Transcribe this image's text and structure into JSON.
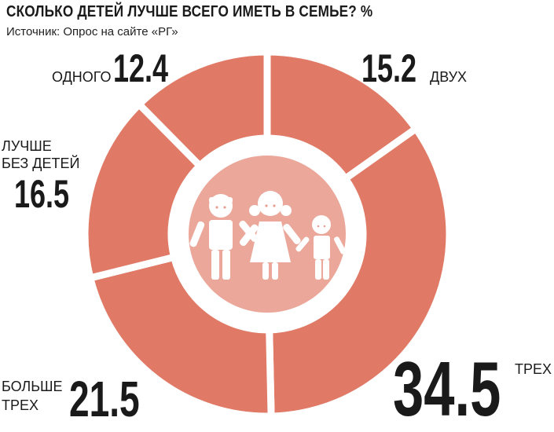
{
  "title": "СКОЛЬКО ДЕТЕЙ ЛУЧШЕ ВСЕГО ИМЕТЬ В СЕМЬЕ? %",
  "source": "Источник: Опрос на сайте «РГ»",
  "colors": {
    "segment": "#e07a66",
    "gap": "#ffffff",
    "center": "#eba79a",
    "figures": "#ffffff"
  },
  "chart_data": {
    "type": "donut",
    "title": "СКОЛЬКО ДЕТЕЙ ЛУЧШЕ ВСЕГО ИМЕТЬ В СЕМЬЕ? %",
    "unit": "%",
    "slices": [
      {
        "label": "ДВУХ",
        "value": 15.2
      },
      {
        "label": "ТРЕХ",
        "value": 34.5
      },
      {
        "label": "БОЛЬШЕ ТРЕХ",
        "value": 21.5
      },
      {
        "label": "ЛУЧШЕ БЕЗ ДЕТЕЙ",
        "value": 16.5
      },
      {
        "label": "ОДНОГО",
        "value": 12.4
      }
    ]
  },
  "labels": {
    "dvuh": {
      "name": "ДВУХ",
      "value": "15.2"
    },
    "treh": {
      "name": "ТРЕХ",
      "value": "34.5"
    },
    "bolshe": {
      "name_line1": "БОЛЬШЕ",
      "name_line2": "ТРЕХ",
      "value": "21.5"
    },
    "bez": {
      "name_line1": "ЛУЧШЕ",
      "name_line2": "БЕЗ ДЕТЕЙ",
      "value": "16.5"
    },
    "odnogo": {
      "name": "ОДНОГО",
      "value": "12.4"
    }
  }
}
